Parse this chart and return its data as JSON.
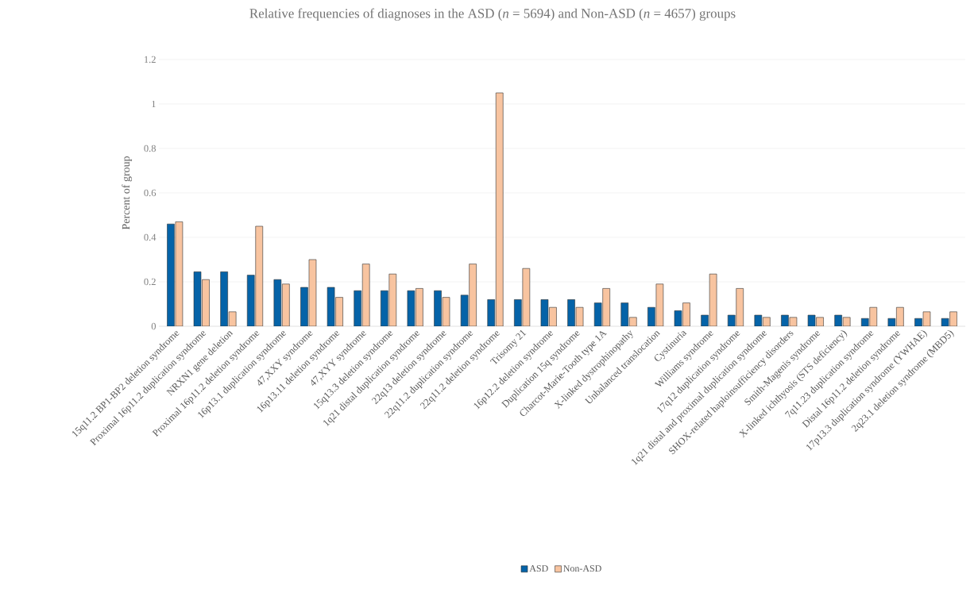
{
  "chart_data": {
    "type": "bar",
    "title": "Relative frequencies of diagnoses in the ASD (*n* = 5694) and Non-ASD (*n* = 4657) groups",
    "ylabel": "Percent of group",
    "categories": [
      "15q11.2 BP1-BP2 deletion syndrome",
      "Proximal 16p11.2 duplication syndrome",
      "NRXN1 gene deletion",
      "Proximal 16p11.2 deletion syndrome",
      "16p13.1 duplication syndrome",
      "47,XXY syndrome",
      "16p13.11 deletion syndrome",
      "47,XYY syndrome",
      "15q13.3 deletion syndrome",
      "1q21 distal duplication syndrome",
      "22q13 deletion syndrome",
      "22q11.2 duplication syndrome",
      "22q11.2 deletion syndrome",
      "Trisomy 21",
      "16p12.2 deletion syndrome",
      "Duplication 15q syndrome",
      "Charcot-Marie-Tooth type 1A",
      "X-linked dystrophinopathy",
      "Unbalanced translocation",
      "Cystinuria",
      "Williams syndrome",
      "17q12 duplication syndrome",
      "1q21 distal and proximal duplication syndrome",
      "SHOX-related haploinsufficiency disorders",
      "Smith-Magenis syndrome",
      "X-linked ichthyosis (STS deficiency)",
      "7q11.23 duplication syndrome",
      "Distal 16p11.2 deletion syndrome",
      "17p13.3 duplication syndrome (YWHAE)",
      "2q23.1 deletion syndrome (MBD5)"
    ],
    "series": [
      {
        "name": "ASD",
        "color": "#0563a8",
        "values": [
          0.46,
          0.245,
          0.245,
          0.23,
          0.21,
          0.175,
          0.175,
          0.16,
          0.16,
          0.16,
          0.16,
          0.14,
          0.12,
          0.12,
          0.12,
          0.12,
          0.105,
          0.105,
          0.085,
          0.07,
          0.05,
          0.05,
          0.05,
          0.05,
          0.05,
          0.05,
          0.035,
          0.035,
          0.035,
          0.035
        ]
      },
      {
        "name": "Non-ASD",
        "color": "#f8c4a0",
        "values": [
          0.47,
          0.21,
          0.065,
          0.45,
          0.19,
          0.3,
          0.13,
          0.28,
          0.235,
          0.17,
          0.13,
          0.28,
          1.05,
          0.26,
          0.085,
          0.085,
          0.17,
          0.04,
          0.19,
          0.105,
          0.235,
          0.17,
          0.04,
          0.04,
          0.04,
          0.04,
          0.085,
          0.085,
          0.065,
          0.065
        ]
      }
    ],
    "ylim": [
      0,
      1.2
    ],
    "yticks": [
      0,
      0.2,
      0.4,
      0.6,
      0.8,
      1,
      1.2
    ],
    "grid": "y",
    "legend": "bottom"
  }
}
